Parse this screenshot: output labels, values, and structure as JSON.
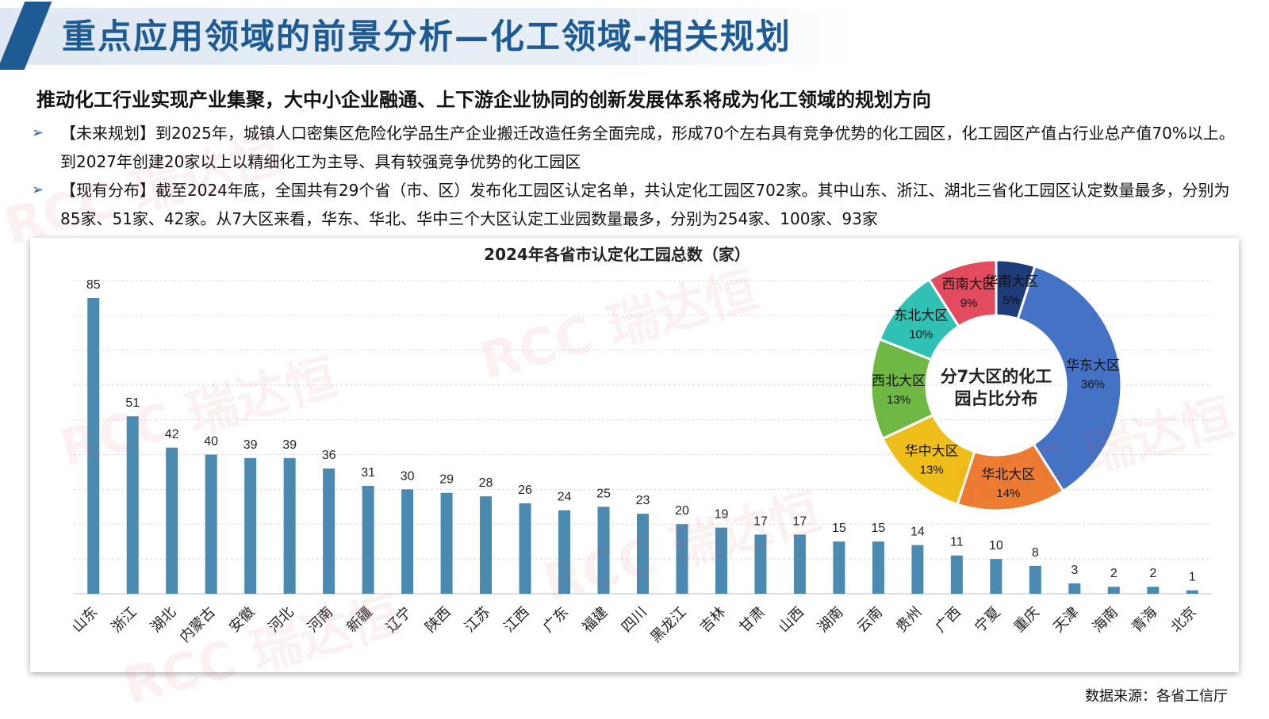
{
  "header": {
    "title": "重点应用领域的前景分析—化工领域-相关规划",
    "subtitle": "推动化工行业实现产业集聚，大中小企业融通、上下游企业协同的创新发展体系将成为化工领域的规划方向"
  },
  "bullets": [
    {
      "text": "【未来规划】到2025年，城镇人口密集区危险化学品生产企业搬迁改造任务全面完成，形成70个左右具有竞争优势的化工园区，化工园区产值占行业总产值70%以上。到2027年创建20家以上以精细化工为主导、具有较强竞争优势的化工园区"
    },
    {
      "text": "【现有分布】截至2024年底，全国共有29个省（市、区）发布化工园区认定名单，共认定化工园区702家。其中山东、浙江、湖北三省化工园区认定数量最多，分别为85家、51家、42家。从7大区来看，华东、华北、华中三个大区认定工业园数量最多，分别为254家、100家、93家"
    }
  ],
  "watermark": "RCC 瑞达恒",
  "source": "数据来源：各省工信厅",
  "chart_data": [
    {
      "type": "bar",
      "title": "2024年各省市认定化工园总数（家）",
      "categories": [
        "山东",
        "浙江",
        "湖北",
        "内蒙古",
        "安徽",
        "河北",
        "河南",
        "新疆",
        "辽宁",
        "陕西",
        "江苏",
        "江西",
        "广东",
        "福建",
        "四川",
        "黑龙江",
        "吉林",
        "甘肃",
        "山西",
        "湖南",
        "云南",
        "贵州",
        "广西",
        "宁夏",
        "重庆",
        "天津",
        "海南",
        "青海",
        "北京"
      ],
      "values": [
        85,
        51,
        42,
        40,
        39,
        39,
        36,
        31,
        30,
        29,
        28,
        26,
        24,
        25,
        23,
        20,
        19,
        17,
        17,
        15,
        15,
        14,
        11,
        10,
        8,
        3,
        2,
        2,
        1
      ],
      "ylim": [
        0,
        90
      ],
      "color": "#4a8ab0",
      "grid": true
    },
    {
      "type": "pie",
      "title": "分7大区的化工园占比分布",
      "labels": [
        "华东大区",
        "华北大区",
        "华中大区",
        "西北大区",
        "东北大区",
        "西南大区",
        "华南大区"
      ],
      "values": [
        36,
        14,
        13,
        13,
        10,
        9,
        5
      ],
      "display": [
        "36%",
        "14%",
        "13%",
        "13%",
        "10%",
        "9%",
        "5%"
      ],
      "colors": [
        "#4472c4",
        "#ed7d31",
        "#f0be1a",
        "#70b844",
        "#2fc1b4",
        "#e34c5e",
        "#1f3c7a"
      ]
    }
  ]
}
